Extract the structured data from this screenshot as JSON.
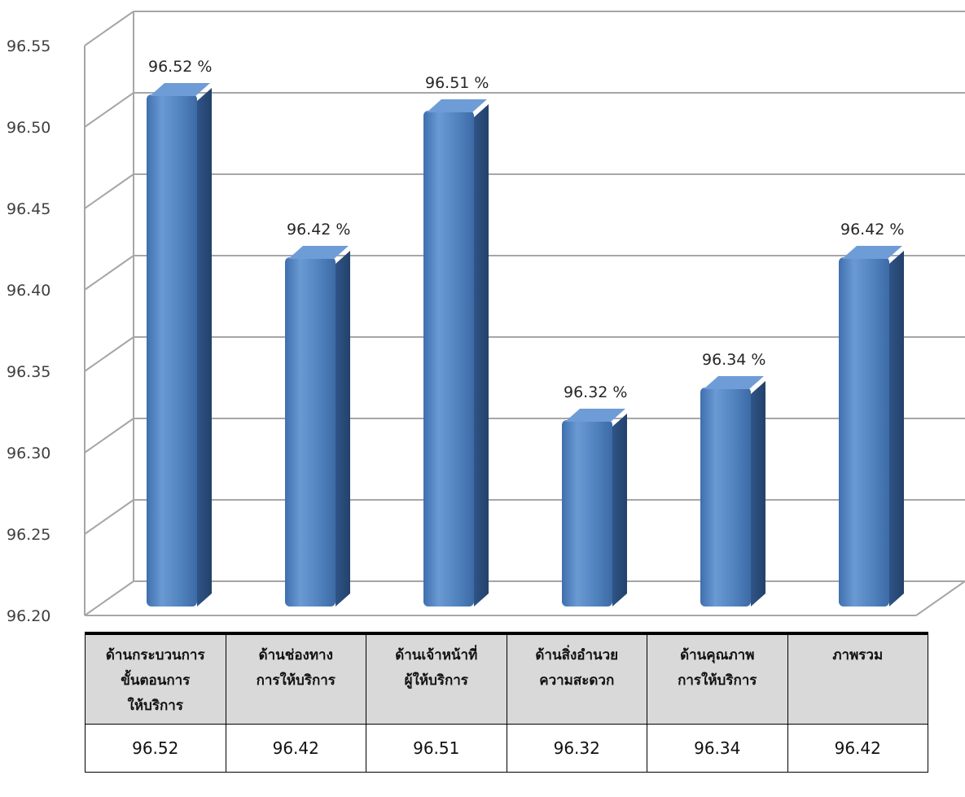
{
  "chart_data": {
    "type": "bar",
    "categories": [
      "ด้านกระบวนการขั้นตอนการให้บริการ",
      "ด้านช่องทางการให้บริการ",
      "ด้านเจ้าหน้าที่ผู้ให้บริการ",
      "ด้านสิ่งอำนวยความสะดวก",
      "ด้านคุณภาพการให้บริการ",
      "ภาพรวม"
    ],
    "values": [
      96.52,
      96.42,
      96.51,
      96.32,
      96.34,
      96.42
    ],
    "data_labels": [
      "96.52 %",
      "96.42 %",
      "96.51 %",
      "96.32 %",
      "96.34 %",
      "96.42 %"
    ],
    "yticks": [
      "96.20",
      "96.25",
      "96.30",
      "96.35",
      "96.40",
      "96.45",
      "96.50",
      "96.55"
    ],
    "ylim": [
      96.2,
      96.55
    ],
    "title": "",
    "xlabel": "",
    "ylabel": "",
    "grid": true,
    "bar_color": "#4f81bd"
  },
  "table": {
    "headers": [
      "ด้านกระบวนการ\nขั้นตอนการ\nให้บริการ",
      "ด้านช่องทาง\nการให้บริการ",
      "ด้านเจ้าหน้าที่\nผู้ให้บริการ",
      "ด้านสิ่งอำนวย\nความสะดวก",
      "ด้านคุณภาพ\nการให้บริการ",
      "ภาพรวม"
    ],
    "values": [
      "96.52",
      "96.42",
      "96.51",
      "96.32",
      "96.34",
      "96.42"
    ]
  }
}
